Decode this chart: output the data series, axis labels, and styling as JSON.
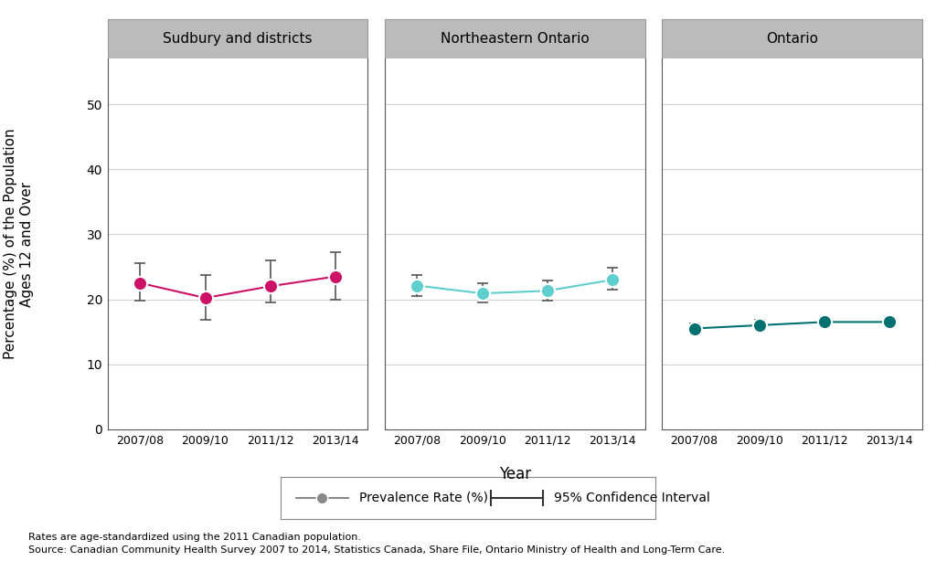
{
  "years": [
    "2007/08",
    "2009/10",
    "2011/12",
    "2013/14"
  ],
  "panels": [
    {
      "title": "Sudbury and districts",
      "color": "#CC1166",
      "values": [
        22.5,
        20.2,
        22.0,
        23.5
      ],
      "ci_lower": [
        19.8,
        16.8,
        19.5,
        20.0
      ],
      "ci_upper": [
        25.5,
        23.8,
        26.0,
        27.2
      ]
    },
    {
      "title": "Northeastern Ontario",
      "color": "#5ECECE",
      "values": [
        22.1,
        20.9,
        21.3,
        23.0
      ],
      "ci_lower": [
        20.5,
        19.5,
        19.8,
        21.5
      ],
      "ci_upper": [
        23.8,
        22.5,
        22.9,
        24.8
      ]
    },
    {
      "title": "Ontario",
      "color": "#007070",
      "values": [
        15.5,
        16.0,
        16.5,
        16.5
      ],
      "ci_lower": [
        14.8,
        15.3,
        15.8,
        15.8
      ],
      "ci_upper": [
        16.3,
        16.8,
        17.2,
        17.2
      ]
    }
  ],
  "ylabel": "Percentage (%) of the Population\nAges 12 and Over",
  "xlabel": "Year",
  "ylim": [
    0,
    57
  ],
  "yticks": [
    0,
    10,
    20,
    30,
    40,
    50
  ],
  "plot_bg": "#FFFFFF",
  "grid_color": "#D0D0D0",
  "header_bg": "#BBBBBB",
  "header_edge": "#999999",
  "footnote1": "Rates are age-standardized using the 2011 Canadian population.",
  "footnote2": "Source: Canadian Community Health Survey 2007 to 2014, Statistics Canada, Share File, Ontario Ministry of Health and Long-Term Care.",
  "legend_label1": "Prevalence Rate (%)",
  "legend_label2": "95% Confidence Interval"
}
